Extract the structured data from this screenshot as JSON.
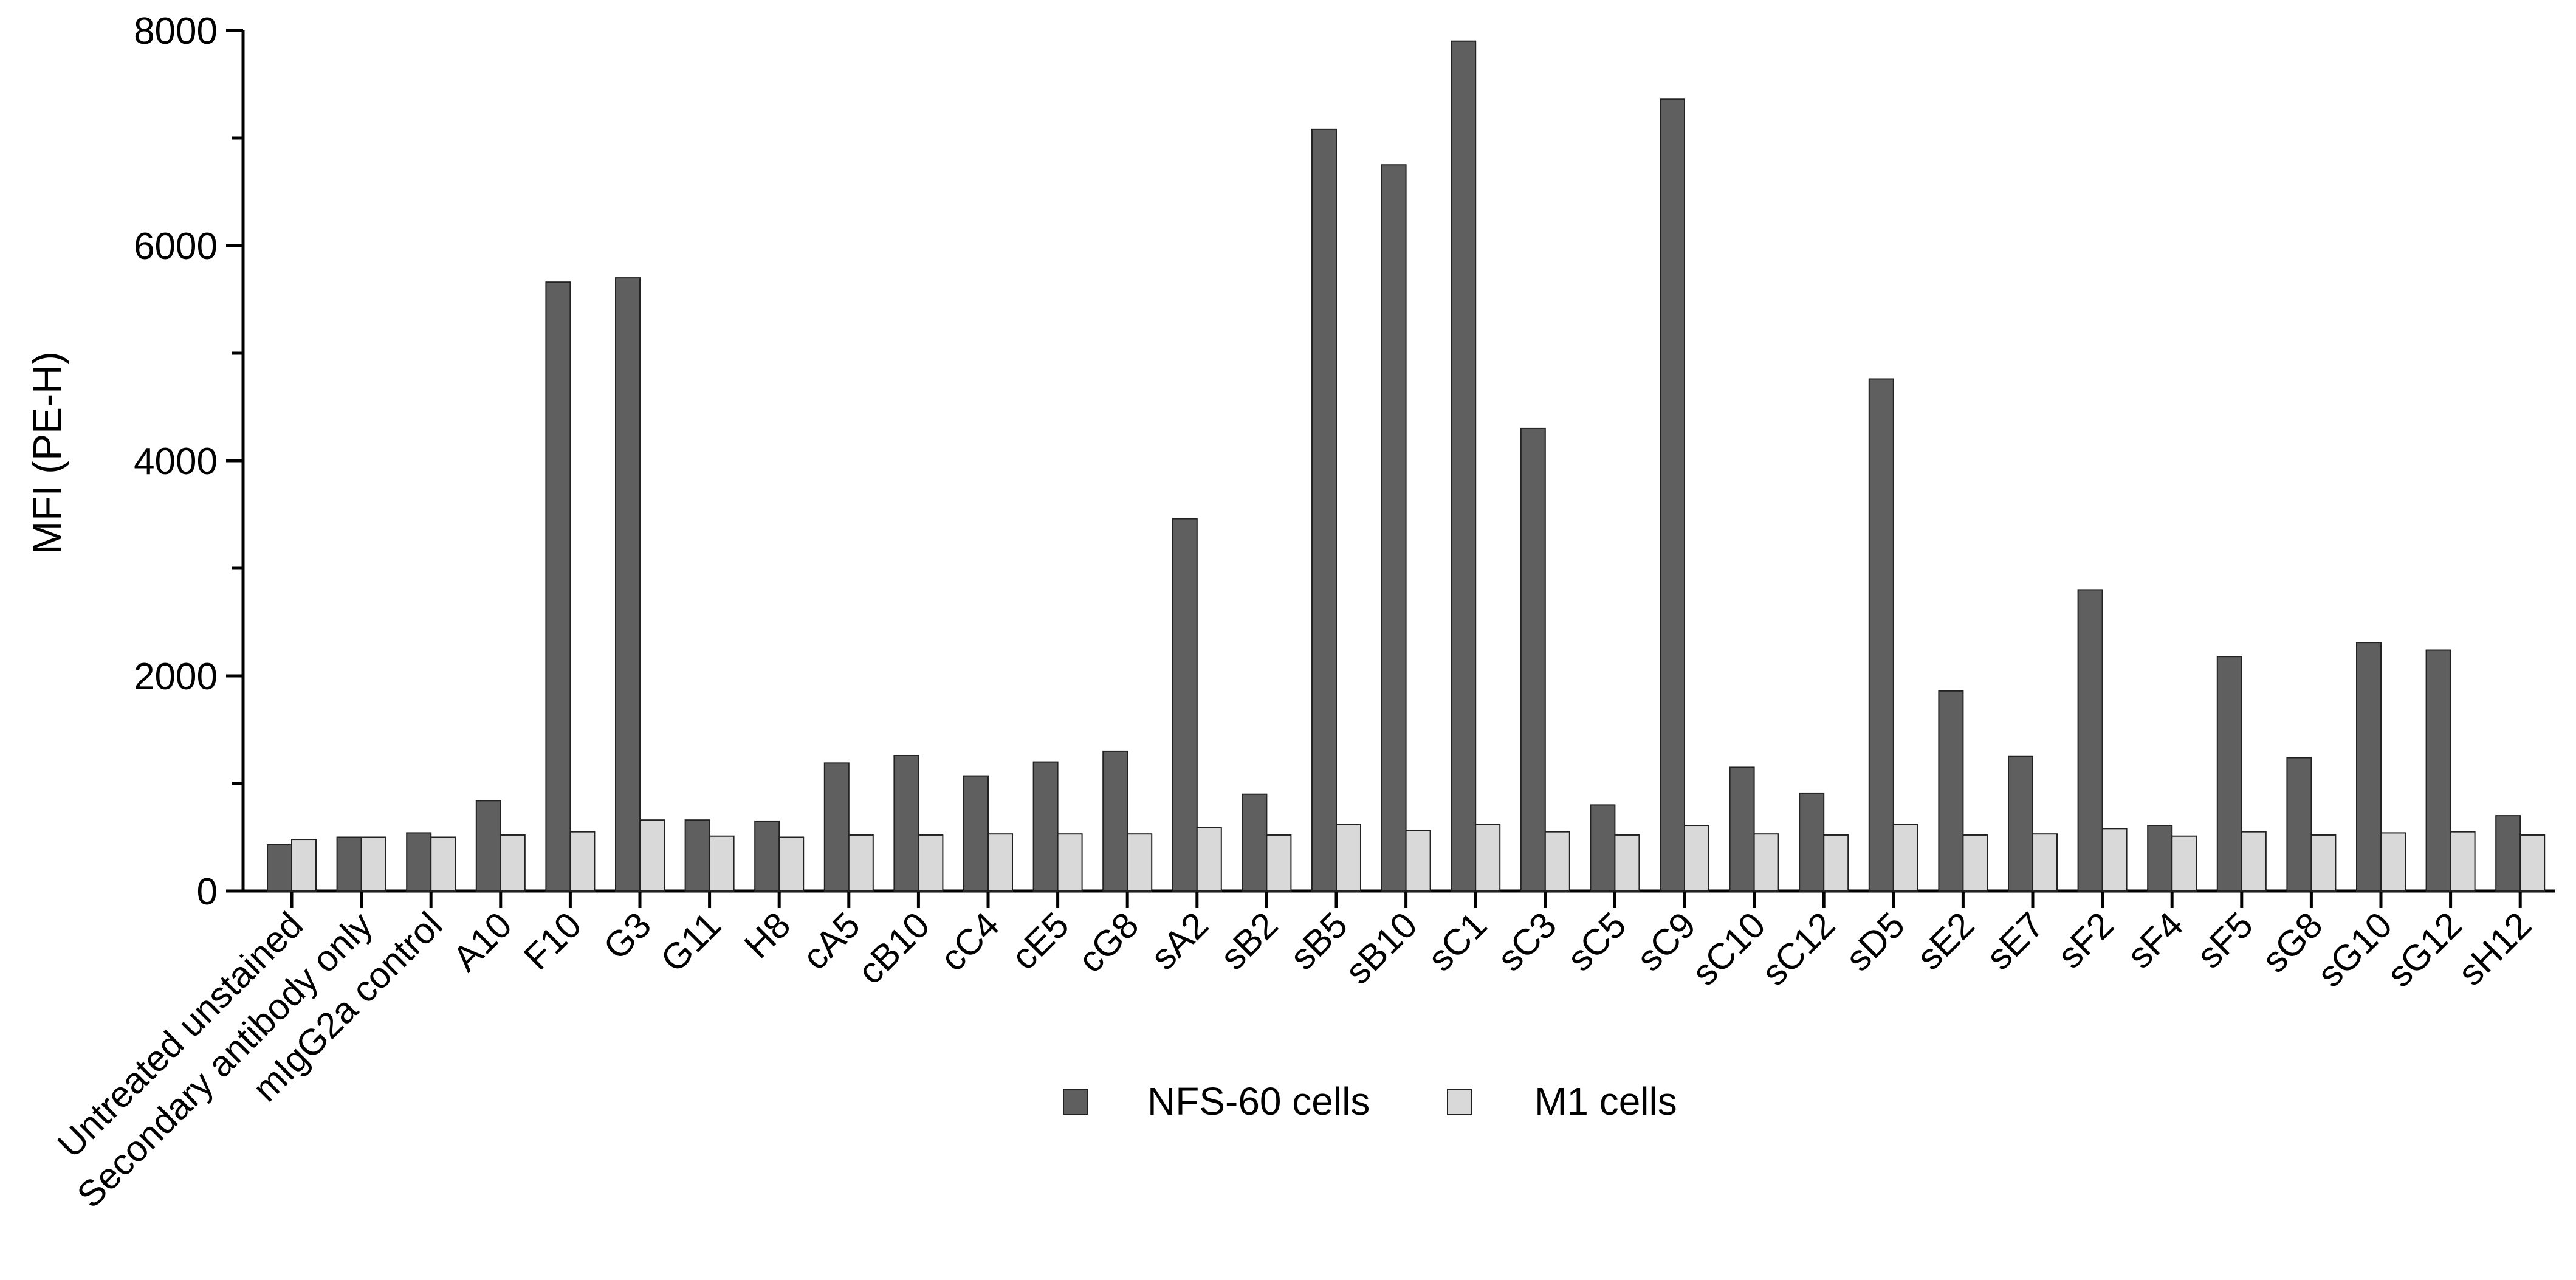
{
  "chart_data": {
    "type": "bar",
    "title": "",
    "xlabel": "",
    "ylabel": "MFI (PE-H)",
    "ylim": [
      0,
      8000
    ],
    "yticks": [
      0,
      2000,
      4000,
      6000,
      8000
    ],
    "grid": false,
    "legend_position": "bottom-center",
    "categories": [
      "Untreated unstained",
      "Secondary antibody only",
      "mIgG2a control",
      "A10",
      "F10",
      "G3",
      "G11",
      "H8",
      "cA5",
      "cB10",
      "cC4",
      "cE5",
      "cG8",
      "sA2",
      "sB2",
      "sB5",
      "sB10",
      "sC1",
      "sC3",
      "sC5",
      "sC9",
      "sC10",
      "sC12",
      "sD5",
      "sE2",
      "sE7",
      "sF2",
      "sF4",
      "sF5",
      "sG8",
      "sG10",
      "sG12",
      "sH12"
    ],
    "series": [
      {
        "name": "NFS-60 cells",
        "color": "#5f5f5f",
        "values": [
          430,
          500,
          540,
          840,
          5660,
          5700,
          660,
          650,
          1190,
          1260,
          1070,
          1200,
          1300,
          3460,
          900,
          7080,
          6750,
          7900,
          4300,
          800,
          7360,
          1150,
          910,
          4760,
          1860,
          1250,
          2800,
          610,
          2180,
          1240,
          2310,
          2240,
          700
        ]
      },
      {
        "name": "M1 cells",
        "color": "#d9d9d9",
        "values": [
          480,
          500,
          500,
          520,
          550,
          660,
          510,
          500,
          520,
          520,
          530,
          530,
          530,
          590,
          520,
          620,
          560,
          620,
          550,
          520,
          610,
          530,
          520,
          620,
          520,
          530,
          580,
          510,
          550,
          520,
          540,
          550,
          520
        ]
      }
    ]
  }
}
